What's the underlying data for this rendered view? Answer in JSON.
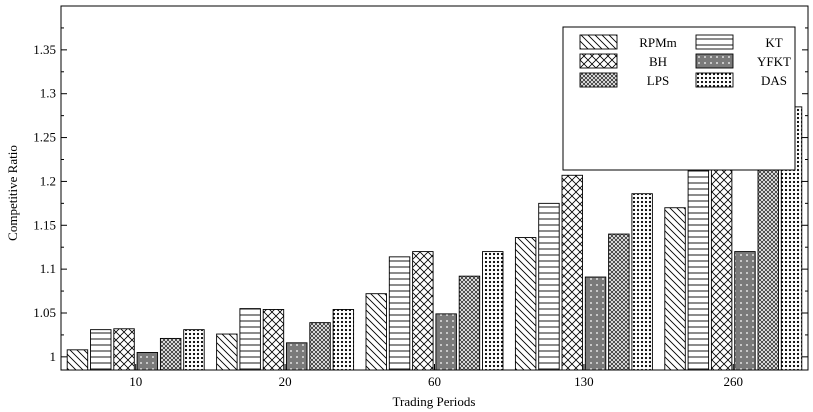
{
  "chart_data": {
    "type": "bar",
    "xlabel": "Trading Periods",
    "ylabel": "Competitive Ratio",
    "categories": [
      "10",
      "20",
      "60",
      "130",
      "260"
    ],
    "ylim": [
      0.985,
      1.4
    ],
    "yticks": [
      1,
      1.05,
      1.1,
      1.15,
      1.2,
      1.25,
      1.3,
      1.35
    ],
    "ytick_labels": [
      "1",
      "1.05",
      "1.1",
      "1.15",
      "1.2",
      "1.25",
      "1.3",
      "1.35"
    ],
    "legend_position": "top-right",
    "grid": false,
    "series": [
      {
        "name": "RPMm",
        "pattern": "diag-back",
        "values": [
          1.008,
          1.026,
          1.072,
          1.136,
          1.17
        ]
      },
      {
        "name": "KT",
        "pattern": "horizontal",
        "values": [
          1.031,
          1.055,
          1.114,
          1.175,
          1.248
        ]
      },
      {
        "name": "BH",
        "pattern": "crosshatch",
        "values": [
          1.032,
          1.054,
          1.12,
          1.207,
          1.288
        ]
      },
      {
        "name": "YFKT",
        "pattern": "dark-dots",
        "values": [
          1.005,
          1.016,
          1.049,
          1.091,
          1.12
        ]
      },
      {
        "name": "LPS",
        "pattern": "dense-grid",
        "values": [
          1.021,
          1.039,
          1.092,
          1.14,
          1.23
        ]
      },
      {
        "name": "DAS",
        "pattern": "dots",
        "values": [
          1.031,
          1.054,
          1.12,
          1.186,
          1.285
        ]
      }
    ]
  }
}
